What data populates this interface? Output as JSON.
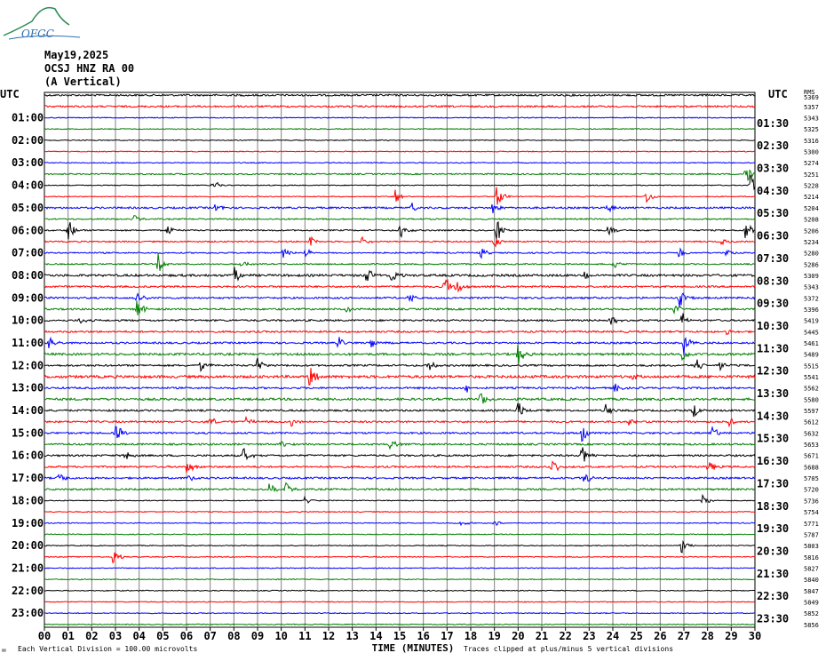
{
  "logo_text": "OFGC",
  "header": {
    "date": "May19,2025",
    "station": "OCSJ HNZ RA 00",
    "component": "(A Vertical)"
  },
  "axis_left_label": "UTC",
  "axis_right_label": "UTC",
  "right_col_header": "RMS",
  "xlabel": "TIME (MINUTES)",
  "footer_left": "Each Vertical Division =  100.00 microvolts",
  "footer_right": "Traces clipped at plus/minus 5 vertical divisions",
  "colors": {
    "black": "#000000",
    "red": "#ff0000",
    "blue": "#0000ff",
    "green": "#007f00",
    "grid": "#808080"
  },
  "chart_data": {
    "type": "helicorder",
    "x_ticks": [
      "00",
      "01",
      "02",
      "03",
      "04",
      "05",
      "06",
      "07",
      "08",
      "09",
      "10",
      "11",
      "12",
      "13",
      "14",
      "15",
      "16",
      "17",
      "18",
      "19",
      "20",
      "21",
      "22",
      "23",
      "24",
      "25",
      "26",
      "27",
      "28",
      "29",
      "30"
    ],
    "xlim": [
      0,
      30
    ],
    "left_labels": [
      "",
      "01:00",
      "02:00",
      "03:00",
      "04:00",
      "05:00",
      "06:00",
      "07:00",
      "08:00",
      "09:00",
      "10:00",
      "11:00",
      "12:00",
      "13:00",
      "14:00",
      "15:00",
      "16:00",
      "17:00",
      "18:00",
      "19:00",
      "20:00",
      "21:00",
      "22:00",
      "23:00"
    ],
    "right_labels": [
      "UTC",
      "01:30",
      "02:30",
      "03:30",
      "04:30",
      "05:30",
      "06:30",
      "07:30",
      "08:30",
      "09:30",
      "10:30",
      "11:30",
      "12:30",
      "13:30",
      "14:30",
      "15:30",
      "16:30",
      "17:30",
      "18:30",
      "19:30",
      "20:30",
      "21:30",
      "22:30",
      "23:30"
    ],
    "rms": [
      "5369",
      "5357",
      "5343",
      "5325",
      "5316",
      "5300",
      "5274",
      "5251",
      "5228",
      "5214",
      "5204",
      "5208",
      "5206",
      "5234",
      "5280",
      "5286",
      "5309",
      "5343",
      "5372",
      "5396",
      "5419",
      "5445",
      "5461",
      "5489",
      "5515",
      "5541",
      "5562",
      "5580",
      "5597",
      "5612",
      "5632",
      "5653",
      "5671",
      "5688",
      "5705",
      "5720",
      "5736",
      "5754",
      "5771",
      "5787",
      "5803",
      "5816",
      "5827",
      "5840",
      "5847",
      "5849",
      "5852",
      "5856"
    ],
    "trace_colors": [
      "black",
      "red",
      "blue",
      "green"
    ],
    "n_traces": 48,
    "noise_level": [
      2,
      2,
      1,
      1,
      1,
      1,
      1,
      1.5,
      1,
      1,
      2,
      1.5,
      1.5,
      1.5,
      1.5,
      1.5,
      2.5,
      2,
      2,
      2,
      2,
      2,
      2,
      2.5,
      2,
      3,
      2,
      2.5,
      2,
      2,
      2,
      2,
      2,
      2,
      2,
      2,
      1,
      1,
      1,
      1,
      1,
      1,
      1,
      1,
      1,
      1,
      1,
      1
    ],
    "events": [
      {
        "trace": 7,
        "minute": 29.6,
        "amp": 14
      },
      {
        "trace": 8,
        "minute": 7.1,
        "amp": 8
      },
      {
        "trace": 8,
        "minute": 29.8,
        "amp": 14
      },
      {
        "trace": 9,
        "minute": 14.8,
        "amp": 10
      },
      {
        "trace": 9,
        "minute": 19.1,
        "amp": 14
      },
      {
        "trace": 9,
        "minute": 25.4,
        "amp": 10
      },
      {
        "trace": 10,
        "minute": 7.2,
        "amp": 6
      },
      {
        "trace": 10,
        "minute": 15.5,
        "amp": 6
      },
      {
        "trace": 10,
        "minute": 18.9,
        "amp": 7
      },
      {
        "trace": 10,
        "minute": 23.8,
        "amp": 6
      },
      {
        "trace": 11,
        "minute": 3.8,
        "amp": 5
      },
      {
        "trace": 12,
        "minute": 1.0,
        "amp": 14
      },
      {
        "trace": 12,
        "minute": 5.2,
        "amp": 7
      },
      {
        "trace": 12,
        "minute": 15.0,
        "amp": 14
      },
      {
        "trace": 12,
        "minute": 19.1,
        "amp": 14
      },
      {
        "trace": 12,
        "minute": 23.8,
        "amp": 8
      },
      {
        "trace": 12,
        "minute": 29.6,
        "amp": 12
      },
      {
        "trace": 13,
        "minute": 11.2,
        "amp": 8
      },
      {
        "trace": 13,
        "minute": 13.4,
        "amp": 7
      },
      {
        "trace": 13,
        "minute": 19.0,
        "amp": 8
      },
      {
        "trace": 13,
        "minute": 28.6,
        "amp": 6
      },
      {
        "trace": 14,
        "minute": 10.1,
        "amp": 7
      },
      {
        "trace": 14,
        "minute": 11.0,
        "amp": 6
      },
      {
        "trace": 14,
        "minute": 18.4,
        "amp": 7
      },
      {
        "trace": 14,
        "minute": 26.8,
        "amp": 8
      },
      {
        "trace": 14,
        "minute": 28.8,
        "amp": 6
      },
      {
        "trace": 15,
        "minute": 4.8,
        "amp": 12
      },
      {
        "trace": 15,
        "minute": 8.3,
        "amp": 6
      },
      {
        "trace": 15,
        "minute": 24.0,
        "amp": 6
      },
      {
        "trace": 16,
        "minute": 8.0,
        "amp": 14
      },
      {
        "trace": 16,
        "minute": 13.6,
        "amp": 10
      },
      {
        "trace": 16,
        "minute": 14.6,
        "amp": 12
      },
      {
        "trace": 16,
        "minute": 22.8,
        "amp": 6
      },
      {
        "trace": 17,
        "minute": 16.9,
        "amp": 14
      },
      {
        "trace": 17,
        "minute": 17.4,
        "amp": 10
      },
      {
        "trace": 18,
        "minute": 3.9,
        "amp": 8
      },
      {
        "trace": 18,
        "minute": 15.4,
        "amp": 6
      },
      {
        "trace": 18,
        "minute": 26.8,
        "amp": 12
      },
      {
        "trace": 19,
        "minute": 3.9,
        "amp": 14
      },
      {
        "trace": 19,
        "minute": 12.7,
        "amp": 5
      },
      {
        "trace": 19,
        "minute": 26.6,
        "amp": 8
      },
      {
        "trace": 20,
        "minute": 1.5,
        "amp": 5
      },
      {
        "trace": 20,
        "minute": 23.9,
        "amp": 6
      },
      {
        "trace": 20,
        "minute": 26.9,
        "amp": 10
      },
      {
        "trace": 21,
        "minute": 28.8,
        "amp": 4
      },
      {
        "trace": 22,
        "minute": 0.2,
        "amp": 8
      },
      {
        "trace": 22,
        "minute": 12.4,
        "amp": 8
      },
      {
        "trace": 22,
        "minute": 13.8,
        "amp": 8
      },
      {
        "trace": 22,
        "minute": 27.0,
        "amp": 14
      },
      {
        "trace": 23,
        "minute": 20.0,
        "amp": 14
      },
      {
        "trace": 23,
        "minute": 26.9,
        "amp": 12
      },
      {
        "trace": 24,
        "minute": 6.6,
        "amp": 7
      },
      {
        "trace": 24,
        "minute": 9.0,
        "amp": 10
      },
      {
        "trace": 24,
        "minute": 16.2,
        "amp": 8
      },
      {
        "trace": 24,
        "minute": 27.5,
        "amp": 10
      },
      {
        "trace": 24,
        "minute": 28.5,
        "amp": 8
      },
      {
        "trace": 25,
        "minute": 11.2,
        "amp": 14
      },
      {
        "trace": 25,
        "minute": 24.8,
        "amp": 5
      },
      {
        "trace": 26,
        "minute": 17.8,
        "amp": 7
      },
      {
        "trace": 26,
        "minute": 24.1,
        "amp": 6
      },
      {
        "trace": 27,
        "minute": 18.4,
        "amp": 12
      },
      {
        "trace": 28,
        "minute": 20.0,
        "amp": 14
      },
      {
        "trace": 28,
        "minute": 23.7,
        "amp": 8
      },
      {
        "trace": 28,
        "minute": 27.4,
        "amp": 8
      },
      {
        "trace": 29,
        "minute": 7.0,
        "amp": 8
      },
      {
        "trace": 29,
        "minute": 8.5,
        "amp": 6
      },
      {
        "trace": 29,
        "minute": 10.4,
        "amp": 6
      },
      {
        "trace": 29,
        "minute": 24.7,
        "amp": 6
      },
      {
        "trace": 29,
        "minute": 28.9,
        "amp": 6
      },
      {
        "trace": 30,
        "minute": 3.0,
        "amp": 14
      },
      {
        "trace": 30,
        "minute": 22.7,
        "amp": 12
      },
      {
        "trace": 30,
        "minute": 28.2,
        "amp": 8
      },
      {
        "trace": 31,
        "minute": 10.0,
        "amp": 6
      },
      {
        "trace": 31,
        "minute": 14.6,
        "amp": 7
      },
      {
        "trace": 32,
        "minute": 3.4,
        "amp": 8
      },
      {
        "trace": 32,
        "minute": 8.4,
        "amp": 10
      },
      {
        "trace": 32,
        "minute": 22.7,
        "amp": 14
      },
      {
        "trace": 33,
        "minute": 6.0,
        "amp": 12
      },
      {
        "trace": 33,
        "minute": 21.4,
        "amp": 14
      },
      {
        "trace": 33,
        "minute": 28.0,
        "amp": 10
      },
      {
        "trace": 34,
        "minute": 0.6,
        "amp": 8
      },
      {
        "trace": 34,
        "minute": 6.1,
        "amp": 10
      },
      {
        "trace": 34,
        "minute": 22.8,
        "amp": 8
      },
      {
        "trace": 35,
        "minute": 9.5,
        "amp": 10
      },
      {
        "trace": 35,
        "minute": 10.2,
        "amp": 8
      },
      {
        "trace": 36,
        "minute": 11.0,
        "amp": 5
      },
      {
        "trace": 36,
        "minute": 27.8,
        "amp": 8
      },
      {
        "trace": 38,
        "minute": 17.6,
        "amp": 4
      },
      {
        "trace": 38,
        "minute": 19.0,
        "amp": 4
      },
      {
        "trace": 40,
        "minute": 26.9,
        "amp": 10
      },
      {
        "trace": 41,
        "minute": 2.9,
        "amp": 10
      }
    ]
  }
}
